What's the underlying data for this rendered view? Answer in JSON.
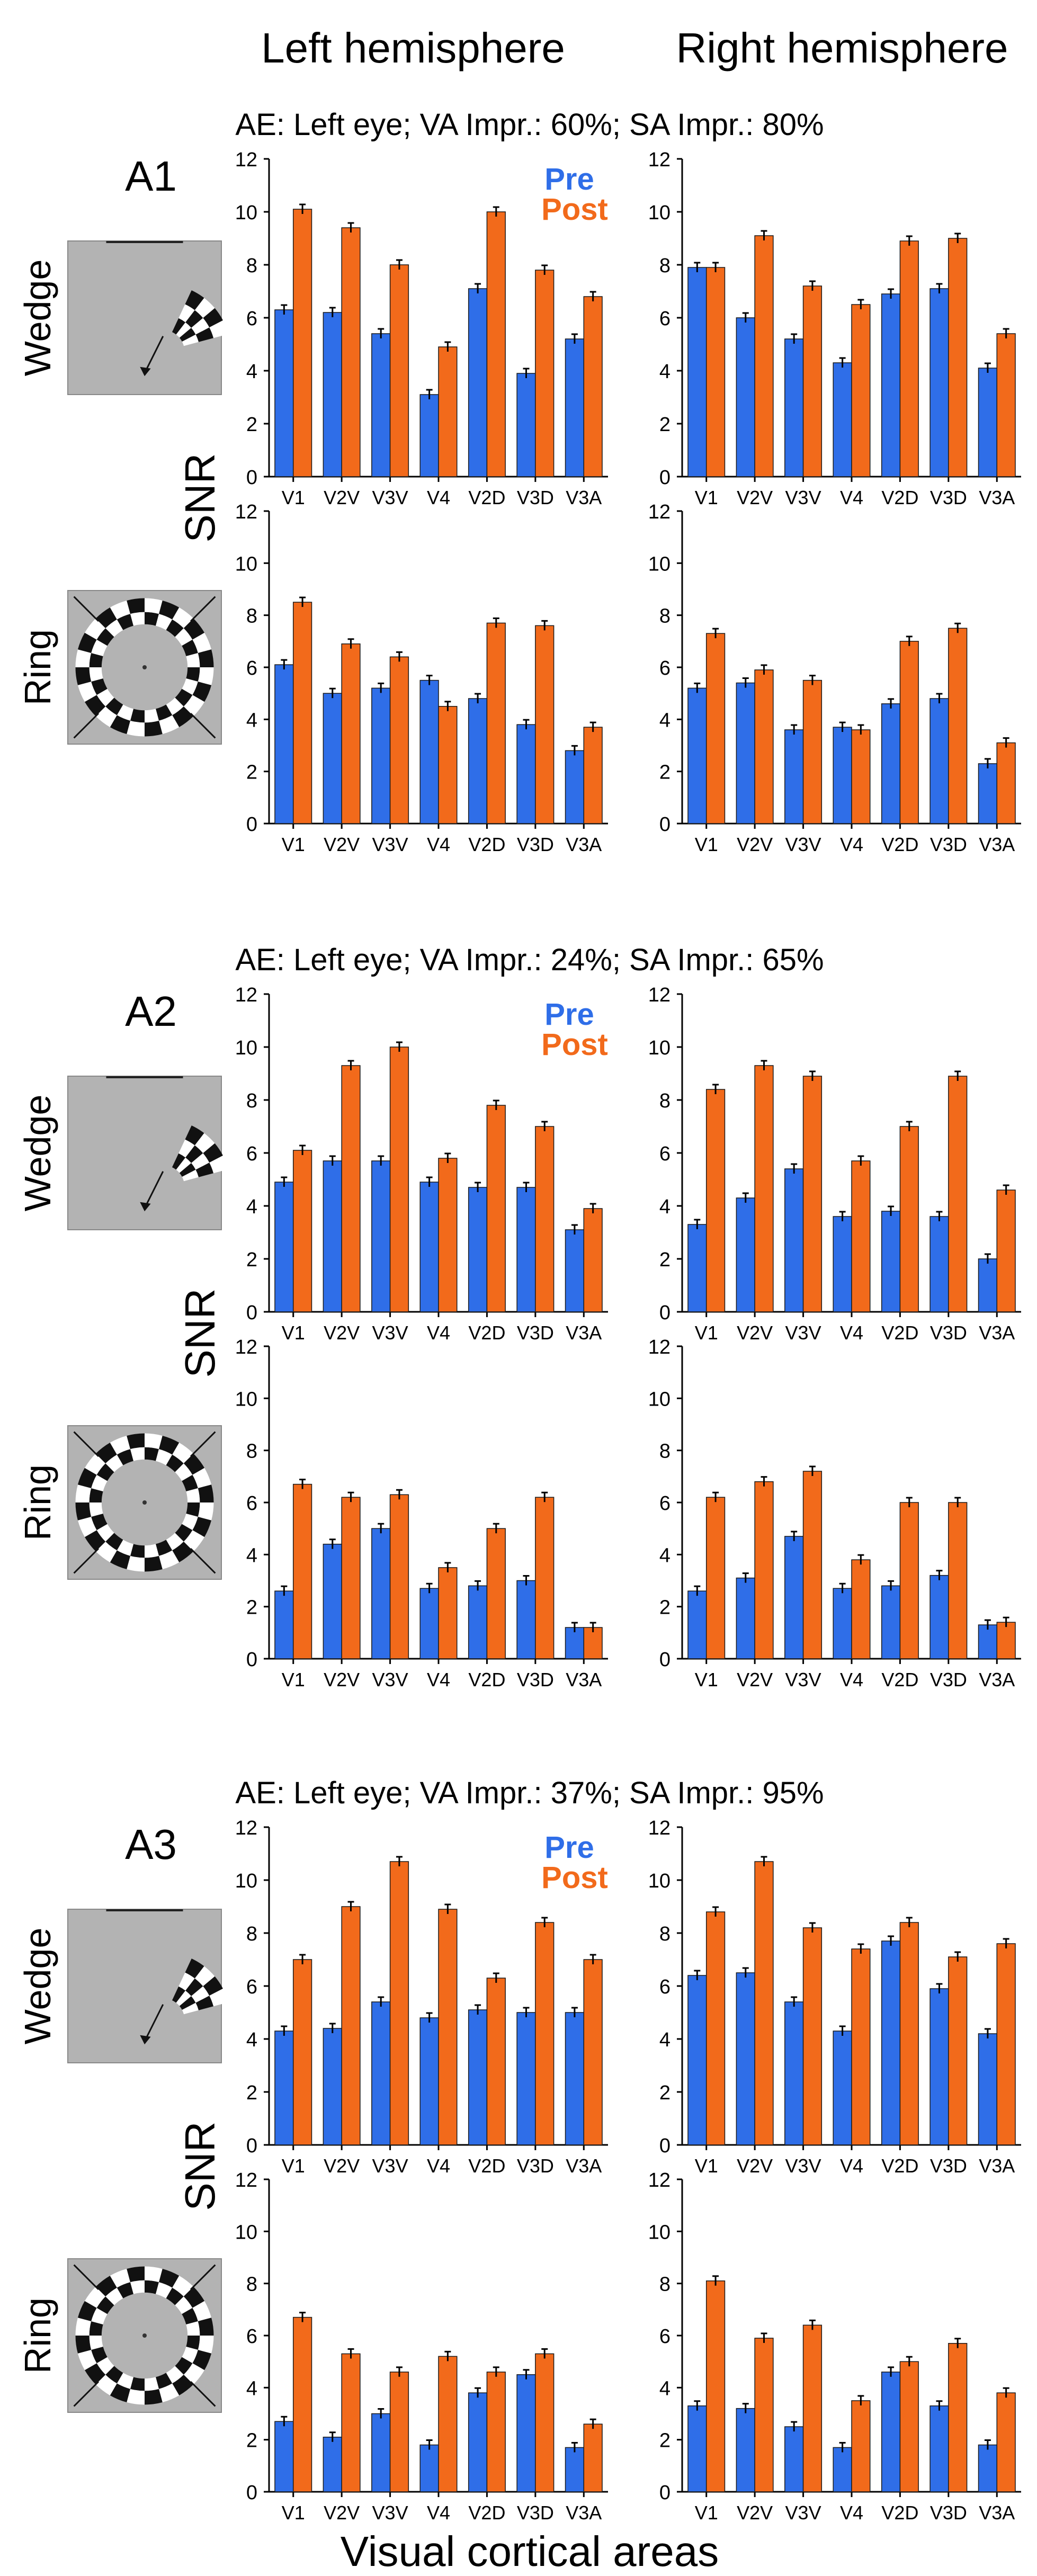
{
  "figure": {
    "headers": {
      "left": "Left hemisphere",
      "right": "Right hemisphere"
    },
    "y_label": "SNR",
    "x_label": "Visual cortical areas",
    "row_labels": {
      "wedge": "Wedge",
      "ring": "Ring"
    },
    "legend": {
      "pre": "Pre",
      "post": "Post"
    },
    "colors": {
      "pre": "#2f6ee8",
      "post": "#f26a1b",
      "stimulus_bg": "#b3b3b3"
    },
    "stimulus_icons": {
      "wedge": "wedge-checkerboard-icon",
      "ring": "ring-checkerboard-icon"
    }
  },
  "chart_data": [
    {
      "type": "bar",
      "subject": "A1",
      "title": "AE: Left eye;  VA Impr.: 60%; SA Impr.: 80%",
      "categories": [
        "V1",
        "V2V",
        "V3V",
        "V4",
        "V2D",
        "V3D",
        "V3A"
      ],
      "ylabel": "SNR",
      "xlabel": "Visual cortical areas",
      "ylim": [
        0,
        12
      ],
      "yticks": [
        0,
        2,
        4,
        6,
        8,
        10,
        12
      ],
      "legend_shown": true,
      "panels": [
        {
          "stimulus": "Wedge",
          "hemisphere": "Left",
          "series": [
            {
              "name": "Pre",
              "values": [
                6.3,
                6.2,
                5.4,
                3.1,
                7.1,
                3.9,
                5.2
              ]
            },
            {
              "name": "Post",
              "values": [
                10.1,
                9.4,
                8.0,
                4.9,
                10.0,
                7.8,
                6.8
              ]
            }
          ]
        },
        {
          "stimulus": "Wedge",
          "hemisphere": "Right",
          "series": [
            {
              "name": "Pre",
              "values": [
                7.9,
                6.0,
                5.2,
                4.3,
                6.9,
                7.1,
                4.1
              ]
            },
            {
              "name": "Post",
              "values": [
                7.9,
                9.1,
                7.2,
                6.5,
                8.9,
                9.0,
                5.4
              ]
            }
          ]
        },
        {
          "stimulus": "Ring",
          "hemisphere": "Left",
          "series": [
            {
              "name": "Pre",
              "values": [
                6.1,
                5.0,
                5.2,
                5.5,
                4.8,
                3.8,
                2.8
              ]
            },
            {
              "name": "Post",
              "values": [
                8.5,
                6.9,
                6.4,
                4.5,
                7.7,
                7.6,
                3.7
              ]
            }
          ]
        },
        {
          "stimulus": "Ring",
          "hemisphere": "Right",
          "series": [
            {
              "name": "Pre",
              "values": [
                5.2,
                5.4,
                3.6,
                3.7,
                4.6,
                4.8,
                2.3
              ]
            },
            {
              "name": "Post",
              "values": [
                7.3,
                5.9,
                5.5,
                3.6,
                7.0,
                7.5,
                3.1
              ]
            }
          ]
        }
      ]
    },
    {
      "type": "bar",
      "subject": "A2",
      "title": "AE: Left eye;  VA Impr.: 24%; SA Impr.: 65%",
      "categories": [
        "V1",
        "V2V",
        "V3V",
        "V4",
        "V2D",
        "V3D",
        "V3A"
      ],
      "ylabel": "SNR",
      "xlabel": "Visual cortical areas",
      "ylim": [
        0,
        12
      ],
      "yticks": [
        0,
        2,
        4,
        6,
        8,
        10,
        12
      ],
      "legend_shown": true,
      "panels": [
        {
          "stimulus": "Wedge",
          "hemisphere": "Left",
          "series": [
            {
              "name": "Pre",
              "values": [
                4.9,
                5.7,
                5.7,
                4.9,
                4.7,
                4.7,
                3.1
              ]
            },
            {
              "name": "Post",
              "values": [
                6.1,
                9.3,
                10.0,
                5.8,
                7.8,
                7.0,
                3.9
              ]
            }
          ]
        },
        {
          "stimulus": "Wedge",
          "hemisphere": "Right",
          "series": [
            {
              "name": "Pre",
              "values": [
                3.3,
                4.3,
                5.4,
                3.6,
                3.8,
                3.6,
                2.0
              ]
            },
            {
              "name": "Post",
              "values": [
                8.4,
                9.3,
                8.9,
                5.7,
                7.0,
                8.9,
                4.6
              ]
            }
          ]
        },
        {
          "stimulus": "Ring",
          "hemisphere": "Left",
          "series": [
            {
              "name": "Pre",
              "values": [
                2.6,
                4.4,
                5.0,
                2.7,
                2.8,
                3.0,
                1.2
              ]
            },
            {
              "name": "Post",
              "values": [
                6.7,
                6.2,
                6.3,
                3.5,
                5.0,
                6.2,
                1.2
              ]
            }
          ]
        },
        {
          "stimulus": "Ring",
          "hemisphere": "Right",
          "series": [
            {
              "name": "Pre",
              "values": [
                2.6,
                3.1,
                4.7,
                2.7,
                2.8,
                3.2,
                1.3
              ]
            },
            {
              "name": "Post",
              "values": [
                6.2,
                6.8,
                7.2,
                3.8,
                6.0,
                6.0,
                1.4
              ]
            }
          ]
        }
      ]
    },
    {
      "type": "bar",
      "subject": "A3",
      "title": "AE: Left eye;  VA Impr.: 37%; SA Impr.: 95%",
      "categories": [
        "V1",
        "V2V",
        "V3V",
        "V4",
        "V2D",
        "V3D",
        "V3A"
      ],
      "ylabel": "SNR",
      "xlabel": "Visual cortical areas",
      "ylim": [
        0,
        12
      ],
      "yticks": [
        0,
        2,
        4,
        6,
        8,
        10,
        12
      ],
      "legend_shown": true,
      "panels": [
        {
          "stimulus": "Wedge",
          "hemisphere": "Left",
          "series": [
            {
              "name": "Pre",
              "values": [
                4.3,
                4.4,
                5.4,
                4.8,
                5.1,
                5.0,
                5.0
              ]
            },
            {
              "name": "Post",
              "values": [
                7.0,
                9.0,
                10.7,
                8.9,
                6.3,
                8.4,
                7.0
              ]
            }
          ]
        },
        {
          "stimulus": "Wedge",
          "hemisphere": "Right",
          "series": [
            {
              "name": "Pre",
              "values": [
                6.4,
                6.5,
                5.4,
                4.3,
                7.7,
                5.9,
                4.2
              ]
            },
            {
              "name": "Post",
              "values": [
                8.8,
                10.7,
                8.2,
                7.4,
                8.4,
                7.1,
                7.6
              ]
            }
          ]
        },
        {
          "stimulus": "Ring",
          "hemisphere": "Left",
          "series": [
            {
              "name": "Pre",
              "values": [
                2.7,
                2.1,
                3.0,
                1.8,
                3.8,
                4.5,
                1.7
              ]
            },
            {
              "name": "Post",
              "values": [
                6.7,
                5.3,
                4.6,
                5.2,
                4.6,
                5.3,
                2.6
              ]
            }
          ]
        },
        {
          "stimulus": "Ring",
          "hemisphere": "Right",
          "series": [
            {
              "name": "Pre",
              "values": [
                3.3,
                3.2,
                2.5,
                1.7,
                4.6,
                3.3,
                1.8
              ]
            },
            {
              "name": "Post",
              "values": [
                8.1,
                5.9,
                6.4,
                3.5,
                5.0,
                5.7,
                3.8
              ]
            }
          ]
        }
      ]
    }
  ]
}
